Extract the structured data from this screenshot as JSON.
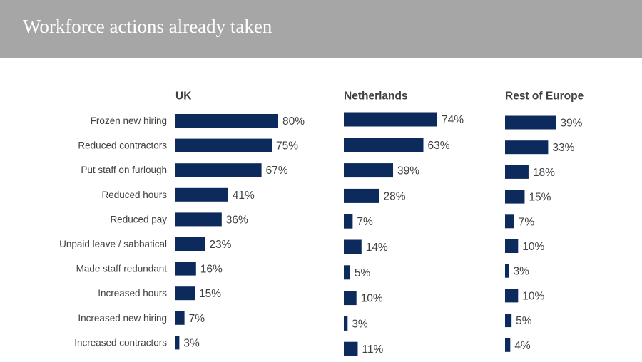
{
  "page": {
    "title": "Workforce actions already taken"
  },
  "colors": {
    "bar": "#0d2a5c",
    "header": "#a6a6a6",
    "text": "#404040"
  },
  "chart_data": {
    "type": "bar",
    "orientation": "horizontal",
    "categories": [
      "Frozen new hiring",
      "Reduced contractors",
      "Put staff on furlough",
      "Reduced hours",
      "Reduced pay",
      "Unpaid leave / sabbatical",
      "Made staff redundant",
      "Increased hours",
      "Increased new hiring",
      "Increased contractors"
    ],
    "series": [
      {
        "name": "UK",
        "values": [
          80,
          75,
          67,
          41,
          36,
          23,
          16,
          15,
          7,
          3
        ]
      },
      {
        "name": "Netherlands",
        "values": [
          74,
          63,
          39,
          28,
          7,
          14,
          5,
          10,
          3,
          11
        ]
      },
      {
        "name": "Rest of Europe",
        "values": [
          39,
          33,
          18,
          15,
          7,
          10,
          3,
          10,
          5,
          4
        ]
      }
    ],
    "value_suffix": "%",
    "grid": false
  }
}
